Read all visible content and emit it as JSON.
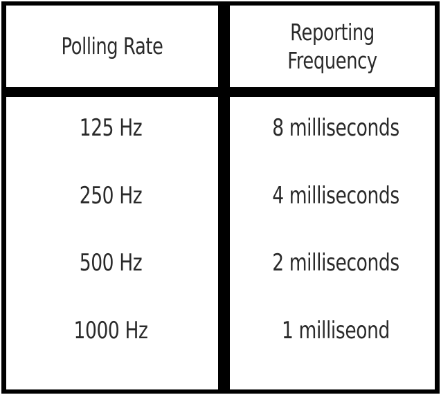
{
  "table": {
    "headers": {
      "polling_rate": "Polling Rate",
      "reporting_frequency_line1": "Reporting",
      "reporting_frequency_line2": "Frequency"
    },
    "rows": [
      {
        "polling_rate": "125 Hz",
        "reporting_frequency": "8 milliseconds"
      },
      {
        "polling_rate": "250 Hz",
        "reporting_frequency": "4 milliseconds"
      },
      {
        "polling_rate": "500 Hz",
        "reporting_frequency": "2 milliseconds"
      },
      {
        "polling_rate": "1000 Hz",
        "reporting_frequency": "1 milliseond"
      }
    ]
  }
}
